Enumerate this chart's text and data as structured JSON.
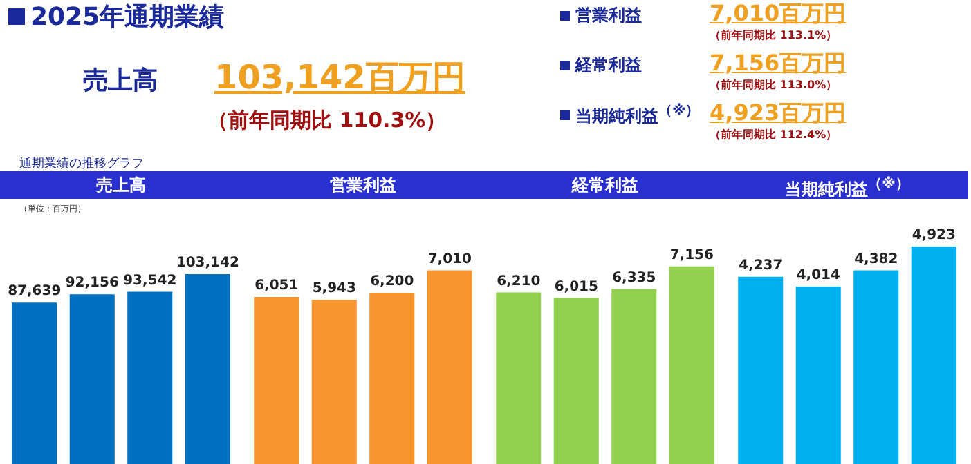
{
  "chart_data": [
    {
      "type": "other",
      "title": "2025年通期業績",
      "annotations": [
        "売上高",
        "103,142百万円",
        "（前年同期比 110.3%）",
        "営業利益",
        "7,010百万円",
        "（前年同期比 113.1%）",
        "経常利益",
        "7,156百万円",
        "（前年同期比 113.0%）",
        "当期純利益$^{（※）}$",
        "4,923百万円",
        "（前年同期比 112.4%）"
      ]
    },
    {
      "type": "bar",
      "title": "売上高",
      "annotations": [
        "通期業績の推移グラフ",
        "（単位：百万円）"
      ],
      "categories": [
        null,
        null,
        null,
        null
      ],
      "values": [
        87639,
        92156,
        93542,
        103142
      ],
      "value_labels": [
        "87,639",
        "92,156",
        "93,542",
        "103,142"
      ],
      "color": "#0070c0",
      "tick_labels": false
    },
    {
      "type": "bar",
      "title": "営業利益",
      "categories": [
        null,
        null,
        null,
        null
      ],
      "values": [
        6051,
        5943,
        6200,
        7010
      ],
      "value_labels": [
        "6,051",
        "5,943",
        "6,200",
        "7,010"
      ],
      "color": "#f7962f",
      "tick_labels": false
    },
    {
      "type": "bar",
      "title": "経常利益",
      "categories": [
        null,
        null,
        null,
        null
      ],
      "values": [
        6210,
        6015,
        6335,
        7156
      ],
      "value_labels": [
        "6,210",
        "6,015",
        "6,335",
        "7,156"
      ],
      "color": "#92d050",
      "tick_labels": false
    },
    {
      "type": "bar",
      "title": "当期純利益$^{（※）}$",
      "categories": [
        null,
        null,
        null,
        null
      ],
      "values": [
        4237,
        4014,
        4382,
        4923
      ],
      "value_labels": [
        "4,237",
        "4,014",
        "4,382",
        "4,923"
      ],
      "color": "#00b0f0",
      "tick_labels": false
    }
  ]
}
